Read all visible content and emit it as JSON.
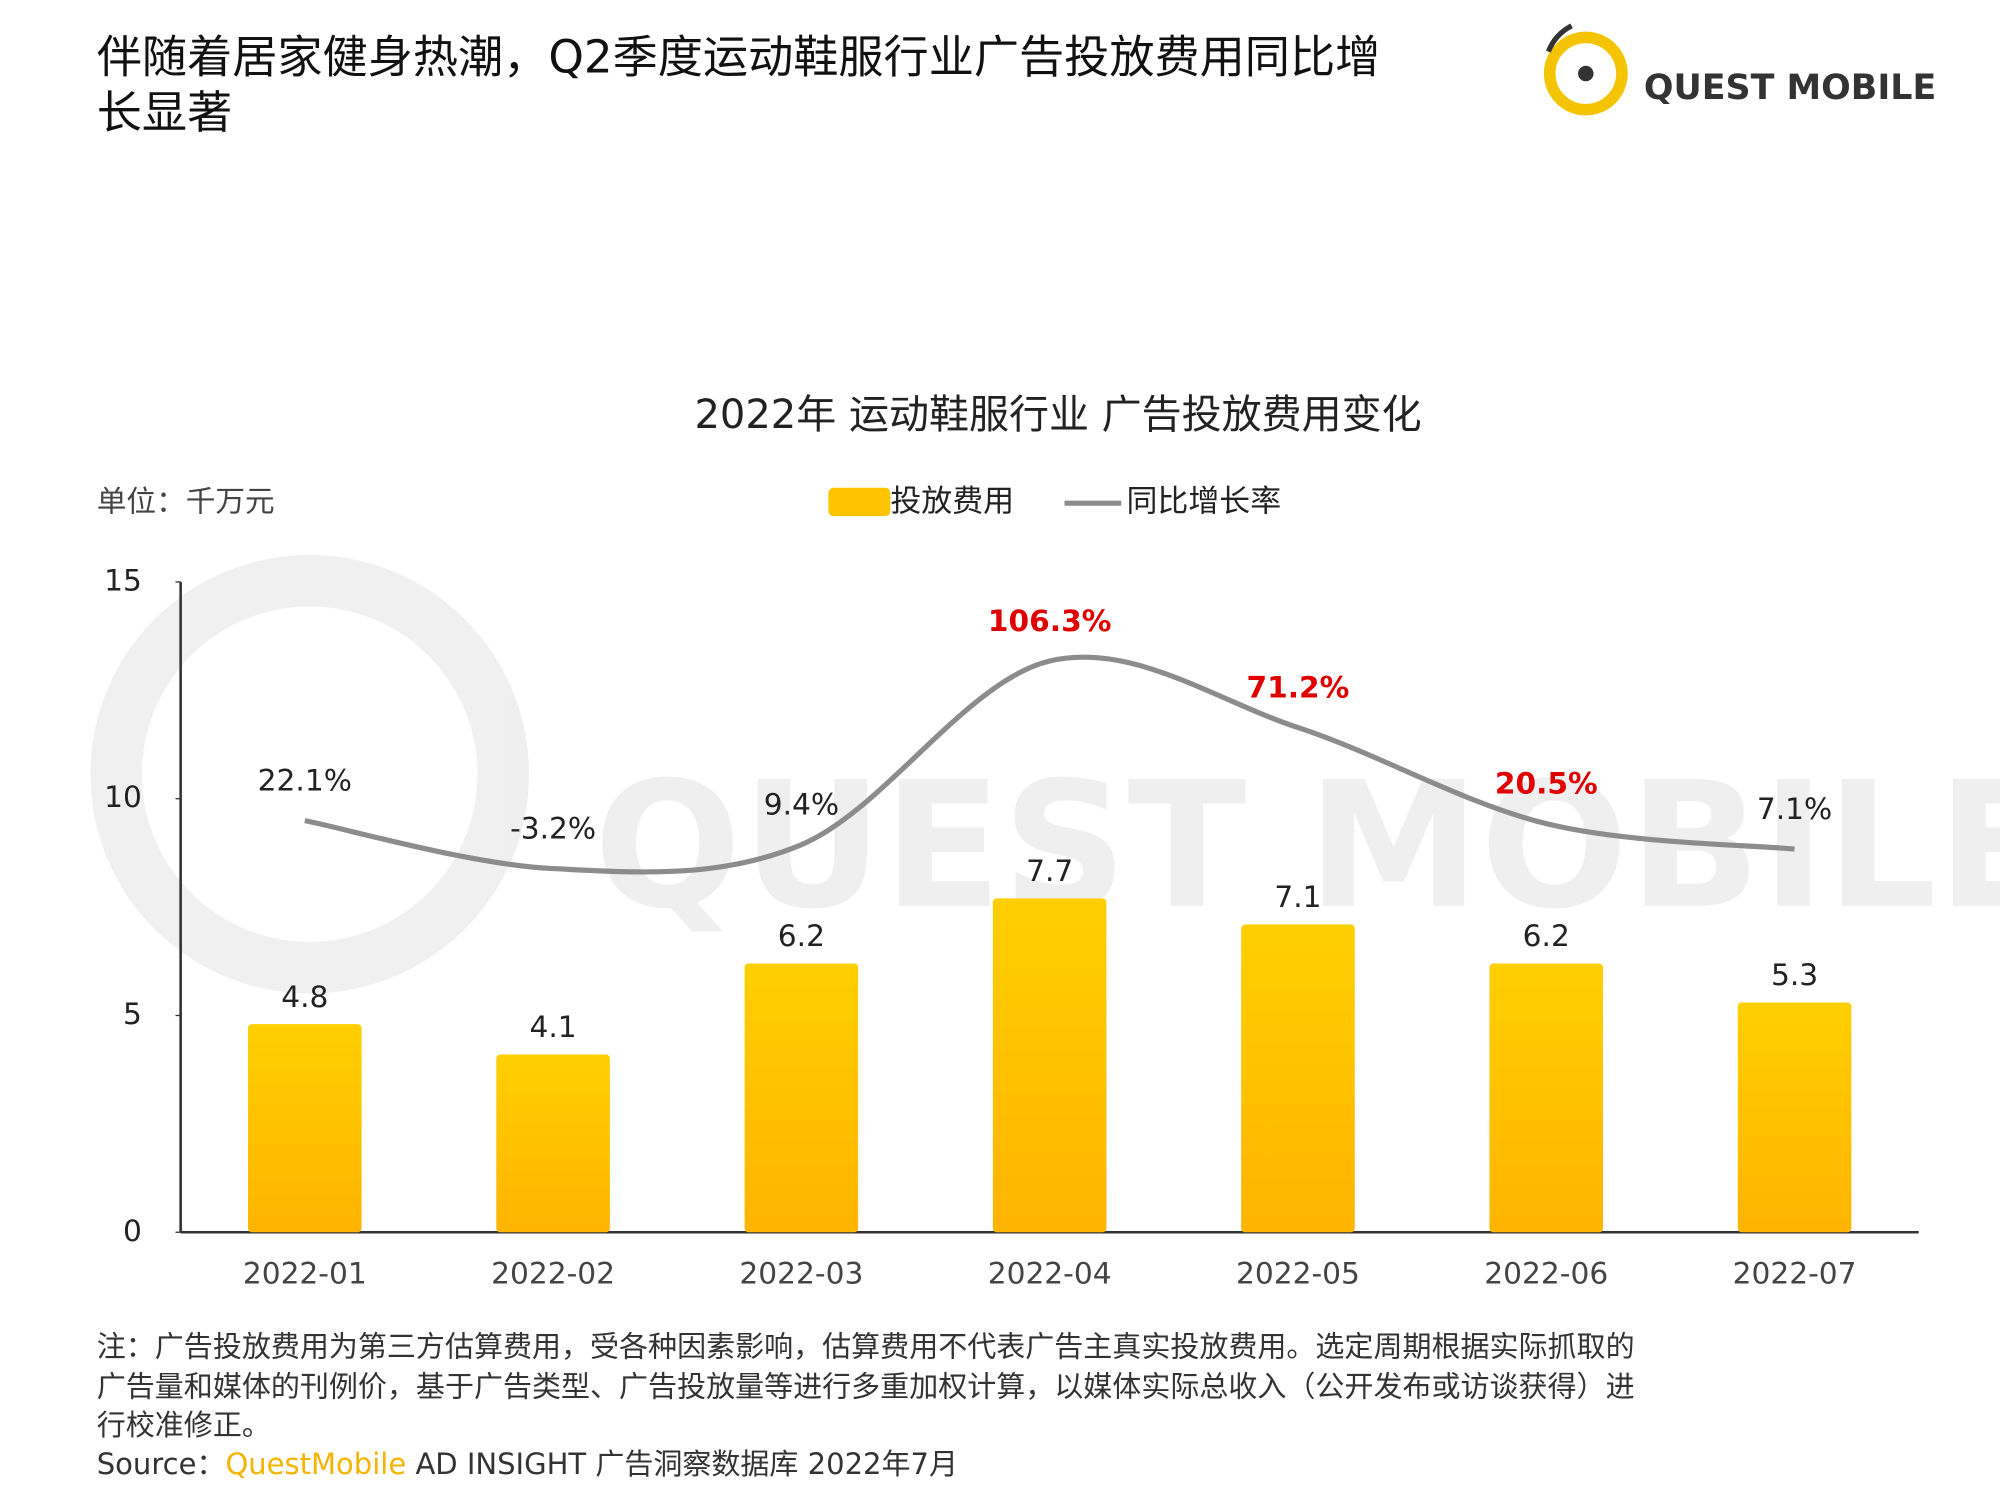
{
  "header": {
    "title": [
      "伴随着居家健身热潮，Q2季度运动鞋服行业广告投放费用同比增",
      "长显著"
    ],
    "logo": "QUEST MOBILE"
  },
  "chart_data": {
    "type": "bar_line",
    "title": "2022年 运动鞋服行业 广告投放费用变化",
    "unit_label": "单位：千万元",
    "categories": [
      "2022-01",
      "2022-02",
      "2022-03",
      "2022-04",
      "2022-05",
      "2022-06",
      "2022-07"
    ],
    "series": [
      {
        "name": "投放费用",
        "type": "bar",
        "color": "#ffc400",
        "values": [
          4.8,
          4.1,
          6.2,
          7.7,
          7.1,
          6.2,
          5.3
        ]
      },
      {
        "name": "同比增长率",
        "type": "line",
        "axis": "y2",
        "color": "#8c8c8c",
        "values": [
          22.1,
          -3.2,
          9.4,
          106.3,
          71.2,
          20.5,
          7.1
        ],
        "value_labels": [
          "22.1%",
          "-3.2%",
          "9.4%",
          "106.3%",
          "71.2%",
          "20.5%",
          "7.1%"
        ],
        "label_colors": [
          "#222222",
          "#222222",
          "#222222",
          "#e00000",
          "#e00000",
          "#e00000",
          "#222222"
        ]
      }
    ],
    "ylim": [
      0,
      15
    ],
    "yticks": [
      0,
      5,
      10,
      15
    ],
    "y2lim": [
      -195,
      148
    ],
    "legend": "top"
  },
  "footer": {
    "note": [
      "注：广告投放费用为第三方估算费用，受各种因素影响，估算费用不代表广告主真实投放费用。选定周期根据实际抓取的",
      "广告量和媒体的刊例价，基于广告类型、广告投放量等进行多重加权计算，以媒体实际总收入（公开发布或访谈获得）进",
      "行校准修正。"
    ],
    "source_prefix": "Source：",
    "source_brand": "QuestMobile",
    "source_rest": "AD INSIGHT 广告洞察数据库 2022年7月"
  }
}
